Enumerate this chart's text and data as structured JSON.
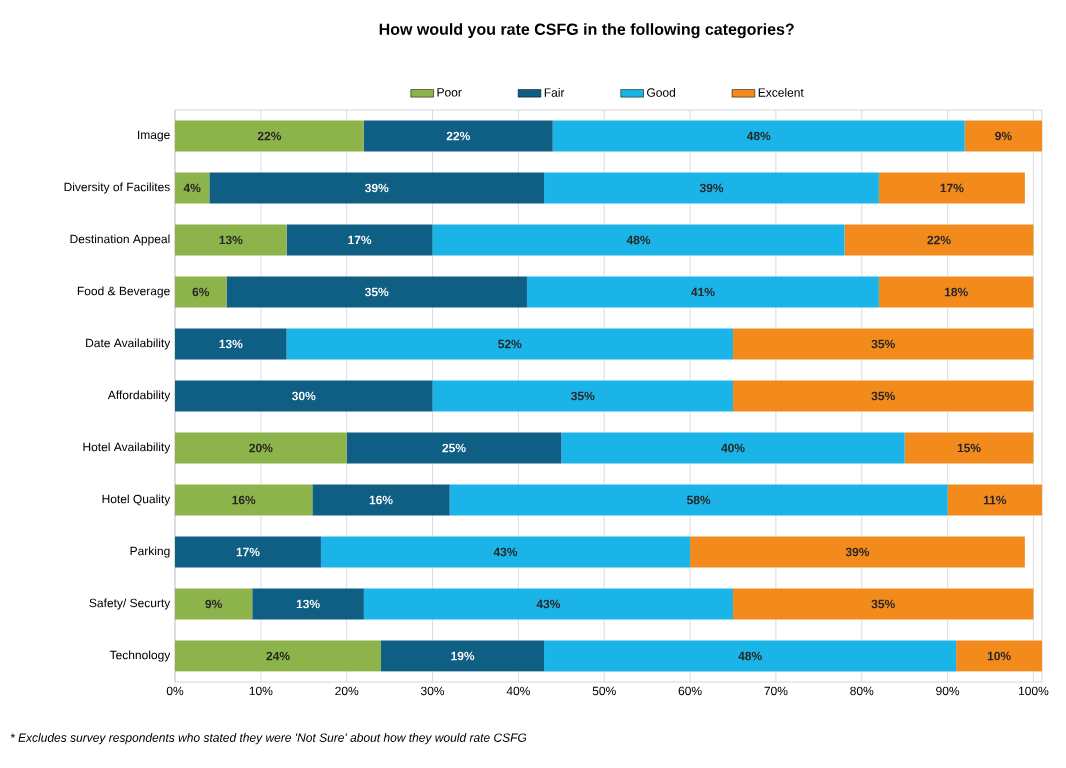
{
  "chart_data": {
    "type": "bar",
    "orientation": "horizontal",
    "stacked": true,
    "title": "How would you rate CSFG in the following categories?",
    "categories": [
      "Image",
      "Diversity of Facilites",
      "Destination Appeal",
      "Food & Beverage",
      "Date Availability",
      "Affordability",
      "Hotel Availability",
      "Hotel Quality",
      "Parking",
      "Safety/ Securty",
      "Technology"
    ],
    "series": [
      {
        "name": "Poor",
        "color": "#8db44a",
        "values": [
          22,
          4,
          13,
          6,
          null,
          null,
          20,
          16,
          null,
          9,
          24
        ],
        "value_labels": [
          "22%",
          "4%",
          "13%",
          "6%",
          null,
          null,
          "20%",
          "16%",
          null,
          "9%",
          "24%"
        ]
      },
      {
        "name": "Fair",
        "color": "#0f5f84",
        "values": [
          22,
          39,
          17,
          35,
          13,
          30,
          25,
          16,
          17,
          13,
          19
        ],
        "value_labels": [
          "22%",
          "39%",
          "17%",
          "35%",
          "13%",
          "30%",
          "25%",
          "16%",
          "17%",
          "13%",
          "19%"
        ]
      },
      {
        "name": "Good",
        "color": "#1ab4e8",
        "values": [
          48,
          39,
          48,
          41,
          52,
          35,
          40,
          58,
          43,
          43,
          48
        ],
        "value_labels": [
          "48%",
          "39%",
          "48%",
          "41%",
          "52%",
          "35%",
          "40%",
          "58%",
          "43%",
          "43%",
          "48%"
        ]
      },
      {
        "name": "Excelent",
        "color": "#f28a1c",
        "values": [
          9,
          17,
          22,
          18,
          35,
          35,
          15,
          11,
          39,
          35,
          10
        ],
        "value_labels": [
          "9%",
          "17%",
          "22%",
          "18%",
          "35%",
          "35%",
          "15%",
          "11%",
          "39%",
          "35%",
          "10%"
        ]
      }
    ],
    "xlim": [
      0,
      101
    ],
    "xticks": [
      {
        "value": 0,
        "label": "0%"
      },
      {
        "value": 10,
        "label": "10%"
      },
      {
        "value": 20,
        "label": "20%"
      },
      {
        "value": 30,
        "label": "30%"
      },
      {
        "value": 40,
        "label": "40%"
      },
      {
        "value": 50,
        "label": "50%"
      },
      {
        "value": 60,
        "label": "60%"
      },
      {
        "value": 70,
        "label": "70%"
      },
      {
        "value": 80,
        "label": "80%"
      },
      {
        "value": 90,
        "label": "90%"
      },
      {
        "value": 100,
        "label": "100%"
      }
    ],
    "grid": "x",
    "legend": "top",
    "annotations": [
      "* Excludes survey respondents who stated they were 'Not Sure' about how they would rate CSFG"
    ]
  }
}
